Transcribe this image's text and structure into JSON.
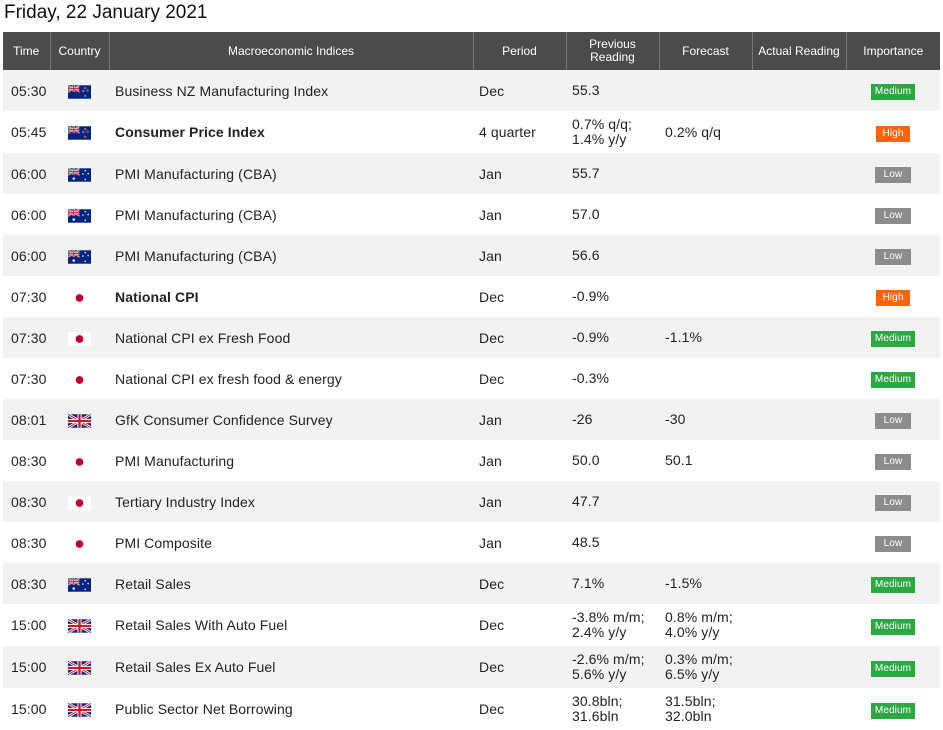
{
  "page": {
    "title": "Friday, 22 January 2021"
  },
  "table": {
    "headers": {
      "time": "Time",
      "country": "Country",
      "indices": "Macroeconomic Indices",
      "period": "Period",
      "previous_line1": "Previous",
      "previous_line2": "Reading",
      "forecast": "Forecast",
      "actual": "Actual Reading",
      "importance": "Importance"
    },
    "rows": [
      {
        "time": "05:30",
        "country": "NZ",
        "indicator": "Business NZ Manufacturing Index",
        "bold": false,
        "period": "Dec",
        "previous": [
          "55.3"
        ],
        "forecast": [],
        "actual": "",
        "importance": "Medium"
      },
      {
        "time": "05:45",
        "country": "NZ",
        "indicator": "Consumer Price Index",
        "bold": true,
        "period": "4 quarter",
        "previous": [
          "0.7% q/q;",
          "1.4% y/y"
        ],
        "forecast": [
          "0.2% q/q"
        ],
        "actual": "",
        "importance": "High"
      },
      {
        "time": "06:00",
        "country": "AU",
        "indicator": "PMI Manufacturing (CBA)",
        "bold": false,
        "period": "Jan",
        "previous": [
          "55.7"
        ],
        "forecast": [],
        "actual": "",
        "importance": "Low"
      },
      {
        "time": "06:00",
        "country": "AU",
        "indicator": "PMI Manufacturing (CBA)",
        "bold": false,
        "period": "Jan",
        "previous": [
          "57.0"
        ],
        "forecast": [],
        "actual": "",
        "importance": "Low"
      },
      {
        "time": "06:00",
        "country": "AU",
        "indicator": "PMI Manufacturing (CBA)",
        "bold": false,
        "period": "Jan",
        "previous": [
          "56.6"
        ],
        "forecast": [],
        "actual": "",
        "importance": "Low"
      },
      {
        "time": "07:30",
        "country": "JP",
        "indicator": "National CPI",
        "bold": true,
        "period": "Dec",
        "previous": [
          "-0.9%"
        ],
        "forecast": [],
        "actual": "",
        "importance": "High"
      },
      {
        "time": "07:30",
        "country": "JP",
        "indicator": "National CPI ex Fresh Food",
        "bold": false,
        "period": "Dec",
        "previous": [
          "-0.9%"
        ],
        "forecast": [
          "-1.1%"
        ],
        "actual": "",
        "importance": "Medium"
      },
      {
        "time": "07:30",
        "country": "JP",
        "indicator": "National CPI ex fresh food & energy",
        "bold": false,
        "period": "Dec",
        "previous": [
          "-0.3%"
        ],
        "forecast": [],
        "actual": "",
        "importance": "Medium"
      },
      {
        "time": "08:01",
        "country": "GB",
        "indicator": "GfK Consumer Confidence Survey",
        "bold": false,
        "period": "Jan",
        "previous": [
          "-26"
        ],
        "forecast": [
          "-30"
        ],
        "actual": "",
        "importance": "Low"
      },
      {
        "time": "08:30",
        "country": "JP",
        "indicator": "PMI Manufacturing",
        "bold": false,
        "period": "Jan",
        "previous": [
          "50.0"
        ],
        "forecast": [
          "50.1"
        ],
        "actual": "",
        "importance": "Low"
      },
      {
        "time": "08:30",
        "country": "JP",
        "indicator": "Tertiary Industry Index",
        "bold": false,
        "period": "Jan",
        "previous": [
          "47.7"
        ],
        "forecast": [],
        "actual": "",
        "importance": "Low"
      },
      {
        "time": "08:30",
        "country": "JP",
        "indicator": "PMI Composite",
        "bold": false,
        "period": "Jan",
        "previous": [
          "48.5"
        ],
        "forecast": [],
        "actual": "",
        "importance": "Low"
      },
      {
        "time": "08:30",
        "country": "AU",
        "indicator": "Retail Sales",
        "bold": false,
        "period": "Dec",
        "previous": [
          "7.1%"
        ],
        "forecast": [
          "-1.5%"
        ],
        "actual": "",
        "importance": "Medium"
      },
      {
        "time": "15:00",
        "country": "GB",
        "indicator": "Retail Sales With Auto Fuel",
        "bold": false,
        "period": "Dec",
        "previous": [
          "-3.8% m/m;",
          "2.4% y/y"
        ],
        "forecast": [
          "0.8% m/m;",
          "4.0% y/y"
        ],
        "actual": "",
        "importance": "Medium"
      },
      {
        "time": "15:00",
        "country": "GB",
        "indicator": "Retail Sales Ex Auto Fuel",
        "bold": false,
        "period": "Dec",
        "previous": [
          "-2.6% m/m;",
          "5.6% y/y"
        ],
        "forecast": [
          "0.3% m/m;",
          "6.5% y/y"
        ],
        "actual": "",
        "importance": "Medium"
      },
      {
        "time": "15:00",
        "country": "GB",
        "indicator": "Public Sector Net Borrowing",
        "bold": false,
        "period": "Dec",
        "previous": [
          "30.8bln;",
          "31.6bln"
        ],
        "forecast": [
          "31.5bln;",
          "32.0bln"
        ],
        "actual": "",
        "importance": "Medium"
      }
    ]
  },
  "colors": {
    "header_bg": "#4b4b4b",
    "row_alt_bg": "#f2f2f2",
    "medium": "#2ca843",
    "high": "#f5660f",
    "low": "#8c8c8c"
  }
}
